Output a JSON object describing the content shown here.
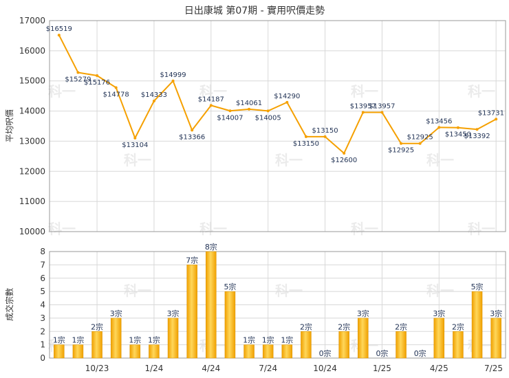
{
  "chart_data": [
    {
      "type": "line",
      "title": "日出康城 第07期 - 實用呎價走勢",
      "ylabel": "平均呎價",
      "ylim": [
        10000,
        17000
      ],
      "yticks": [
        "17000",
        "16000",
        "15000",
        "14000",
        "13000",
        "12000",
        "11000",
        "10000"
      ],
      "grid": true,
      "color": "#f5a000",
      "values": [
        16519,
        15279,
        15176,
        14778,
        13104,
        14333,
        14999,
        13366,
        14187,
        14007,
        14061,
        14005,
        14290,
        13150,
        13150,
        12600,
        13957,
        13957,
        12925,
        12925,
        13456,
        13450,
        13392,
        13731
      ],
      "labels": [
        "$16519",
        "$15279",
        "$15176",
        "$14778",
        "$13104",
        "$14333",
        "$14999",
        "$13366",
        "$14187",
        "$14007",
        "$14061",
        "$14005",
        "$14290",
        "$13150",
        "$13150",
        "$12600",
        "$13957",
        "$13957",
        "$12925",
        "$12925",
        "$13456",
        "$13450",
        "$13392",
        "$13731"
      ]
    },
    {
      "type": "bar",
      "ylabel": "成交宗數",
      "ylim": [
        0,
        8
      ],
      "yticks": [
        "8",
        "7",
        "6",
        "5",
        "4",
        "3",
        "2",
        "1",
        "0"
      ],
      "grid": true,
      "color": "#f5a800",
      "values": [
        1,
        1,
        2,
        3,
        1,
        1,
        3,
        7,
        8,
        5,
        1,
        1,
        1,
        2,
        0,
        2,
        3,
        0,
        2,
        0,
        3,
        2,
        5,
        3
      ],
      "labels": [
        "1宗",
        "1宗",
        "2宗",
        "3宗",
        "1宗",
        "1宗",
        "3宗",
        "7宗",
        "8宗",
        "5宗",
        "1宗",
        "1宗",
        "1宗",
        "2宗",
        "0宗",
        "2宗",
        "3宗",
        "0宗",
        "2宗",
        "0宗",
        "3宗",
        "2宗",
        "5宗",
        "3宗"
      ],
      "xticks": [
        {
          "label": "10/23",
          "pos": 2.5
        },
        {
          "label": "1/24",
          "pos": 5.5
        },
        {
          "label": "4/24",
          "pos": 8.5
        },
        {
          "label": "7/24",
          "pos": 11.5
        },
        {
          "label": "10/24",
          "pos": 14.5
        },
        {
          "label": "1/25",
          "pos": 17.5
        },
        {
          "label": "4/25",
          "pos": 20.5
        },
        {
          "label": "7/25",
          "pos": 23.5
        }
      ]
    }
  ],
  "watermark": "科一"
}
